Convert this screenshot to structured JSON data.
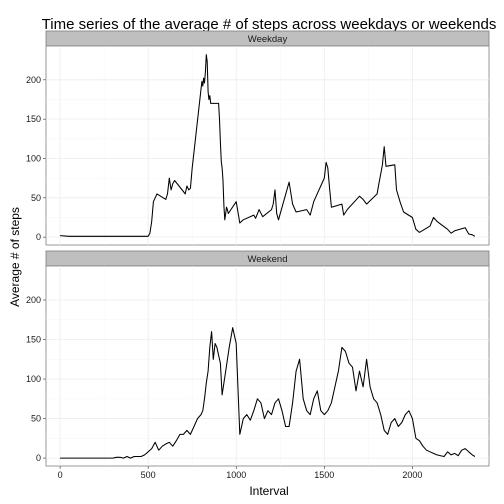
{
  "chart_data": {
    "type": "line",
    "title": "Time series of the average # of steps across weekdays or weekends",
    "xlabel": "Interval",
    "ylabel": "Average # of steps",
    "xlim": [
      -80,
      2435
    ],
    "ylim": [
      -10,
      243
    ],
    "x_ticks": [
      0,
      500,
      1000,
      1500,
      2000
    ],
    "y_ticks": [
      0,
      50,
      100,
      150,
      200
    ],
    "grid": true,
    "facets": [
      {
        "label": "Weekday",
        "x": [
          0,
          50,
          100,
          150,
          200,
          250,
          300,
          350,
          400,
          450,
          500,
          510,
          520,
          530,
          540,
          550,
          600,
          610,
          620,
          630,
          640,
          650,
          700,
          710,
          720,
          730,
          740,
          750,
          800,
          805,
          810,
          815,
          820,
          825,
          830,
          835,
          840,
          845,
          850,
          855,
          900,
          905,
          910,
          915,
          920,
          925,
          930,
          935,
          940,
          945,
          950,
          955,
          1000,
          1020,
          1040,
          1100,
          1110,
          1130,
          1150,
          1200,
          1210,
          1220,
          1230,
          1240,
          1300,
          1320,
          1340,
          1400,
          1420,
          1440,
          1500,
          1510,
          1520,
          1530,
          1540,
          1600,
          1610,
          1630,
          1700,
          1720,
          1740,
          1800,
          1810,
          1820,
          1830,
          1840,
          1850,
          1900,
          1910,
          1930,
          1950,
          2000,
          2020,
          2040,
          2100,
          2120,
          2140,
          2200,
          2220,
          2240,
          2300,
          2320,
          2340,
          2355
        ],
        "y": [
          2,
          1,
          1,
          1,
          1,
          1,
          1,
          1,
          1,
          1,
          1,
          5,
          20,
          45,
          50,
          55,
          48,
          55,
          75,
          60,
          68,
          72,
          58,
          55,
          65,
          60,
          62,
          88,
          188,
          198,
          192,
          202,
          196,
          210,
          232,
          223,
          185,
          175,
          180,
          170,
          170,
          150,
          120,
          96,
          88,
          72,
          40,
          22,
          30,
          38,
          35,
          30,
          45,
          18,
          22,
          28,
          24,
          35,
          26,
          35,
          42,
          60,
          30,
          22,
          70,
          42,
          32,
          35,
          28,
          45,
          75,
          95,
          88,
          62,
          38,
          42,
          28,
          35,
          52,
          48,
          42,
          55,
          68,
          80,
          92,
          115,
          90,
          92,
          60,
          45,
          32,
          25,
          10,
          6,
          14,
          25,
          20,
          10,
          5,
          8,
          12,
          4,
          3,
          1
        ],
        "series_name": ""
      },
      {
        "label": "Weekend",
        "x": [
          0,
          20,
          40,
          60,
          80,
          100,
          120,
          140,
          160,
          180,
          200,
          220,
          240,
          260,
          280,
          300,
          320,
          340,
          360,
          380,
          400,
          420,
          440,
          460,
          480,
          500,
          520,
          540,
          560,
          580,
          600,
          620,
          640,
          660,
          680,
          700,
          720,
          740,
          760,
          780,
          800,
          810,
          820,
          830,
          840,
          850,
          860,
          870,
          880,
          890,
          900,
          910,
          920,
          940,
          960,
          980,
          1000,
          1020,
          1040,
          1060,
          1080,
          1100,
          1120,
          1140,
          1160,
          1180,
          1200,
          1220,
          1240,
          1260,
          1280,
          1300,
          1320,
          1340,
          1360,
          1380,
          1400,
          1420,
          1440,
          1460,
          1480,
          1500,
          1520,
          1540,
          1560,
          1580,
          1600,
          1620,
          1640,
          1660,
          1680,
          1700,
          1720,
          1740,
          1760,
          1780,
          1800,
          1820,
          1840,
          1860,
          1880,
          1900,
          1920,
          1940,
          1960,
          1980,
          2000,
          2020,
          2040,
          2060,
          2080,
          2100,
          2120,
          2140,
          2160,
          2180,
          2200,
          2220,
          2240,
          2260,
          2280,
          2300,
          2320,
          2340,
          2355
        ],
        "y": [
          0,
          0,
          0,
          0,
          0,
          0,
          0,
          0,
          0,
          0,
          0,
          0,
          0,
          0,
          0,
          0,
          1,
          1,
          0,
          2,
          0,
          2,
          2,
          2,
          4,
          8,
          12,
          20,
          10,
          15,
          18,
          20,
          15,
          22,
          30,
          30,
          35,
          30,
          40,
          50,
          55,
          60,
          75,
          95,
          110,
          140,
          160,
          125,
          145,
          140,
          130,
          120,
          80,
          110,
          140,
          165,
          145,
          30,
          50,
          55,
          48,
          60,
          75,
          70,
          50,
          60,
          55,
          70,
          75,
          60,
          40,
          40,
          70,
          110,
          125,
          75,
          60,
          55,
          75,
          85,
          60,
          55,
          60,
          70,
          90,
          110,
          140,
          135,
          120,
          115,
          85,
          110,
          90,
          125,
          90,
          75,
          70,
          55,
          35,
          30,
          45,
          50,
          40,
          45,
          55,
          60,
          50,
          25,
          22,
          15,
          10,
          8,
          6,
          4,
          3,
          2,
          8,
          4,
          6,
          3,
          10,
          12,
          8,
          4,
          2
        ],
        "series_name": ""
      }
    ]
  }
}
